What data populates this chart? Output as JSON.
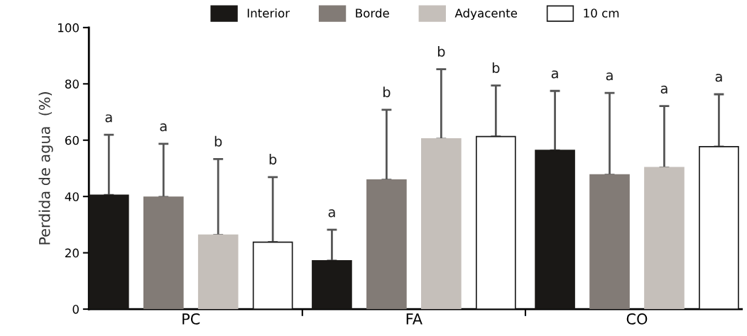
{
  "chart_data": {
    "type": "bar",
    "ylabel": "Perdida de agua  (%)",
    "categories": [
      "PC",
      "FA",
      "CO"
    ],
    "ylim": [
      0,
      100
    ],
    "yticks": [
      0,
      20,
      40,
      60,
      80,
      100
    ],
    "grid": false,
    "legend": "top",
    "annotations": [
      "a",
      "a",
      "b",
      "b",
      "a",
      "b",
      "b",
      "b",
      "a",
      "a",
      "a",
      "a"
    ],
    "series": [
      {
        "name": "Interior",
        "color": "#1a1816",
        "values": [
          40.5,
          17.2,
          56.4
        ],
        "errors": [
          [
            40.5,
            61.9
          ],
          [
            17.2,
            28.2
          ],
          [
            56.4,
            77.5
          ]
        ]
      },
      {
        "name": "Borde",
        "color": "#827b76",
        "values": [
          39.8,
          45.9,
          47.7
        ],
        "errors": [
          [
            39.8,
            58.7
          ],
          [
            45.9,
            70.8
          ],
          [
            47.7,
            76.8
          ]
        ]
      },
      {
        "name": "Adyacente",
        "color": "#c5bfba",
        "values": [
          26.3,
          60.5,
          50.3
        ],
        "errors": [
          [
            26.3,
            53.3
          ],
          [
            60.5,
            85.2
          ],
          [
            50.3,
            72.1
          ]
        ]
      },
      {
        "name": "10 cm",
        "color": "#ffffff",
        "values": [
          23.8,
          61.3,
          57.7
        ],
        "errors": [
          [
            23.8,
            46.9
          ],
          [
            61.3,
            79.4
          ],
          [
            57.7,
            76.3
          ]
        ]
      }
    ]
  }
}
